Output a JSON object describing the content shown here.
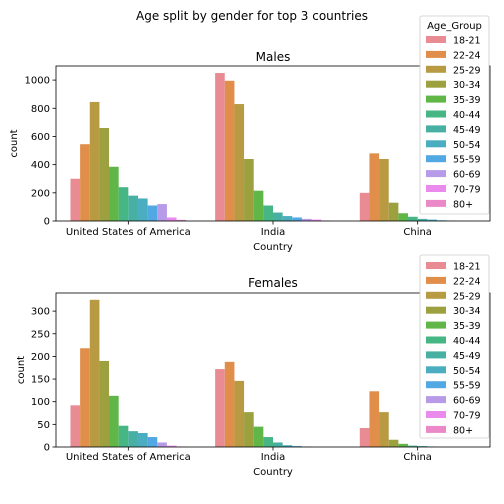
{
  "suptitle": "Age split by gender for top 3 countries",
  "colors": [
    "#e88b92",
    "#e08e4a",
    "#b79a41",
    "#9ca03f",
    "#60b646",
    "#47b685",
    "#48b0a3",
    "#4aaec0",
    "#52a8e3",
    "#b79ae8",
    "#ea8aec",
    "#eb88c7"
  ],
  "chart_data": [
    {
      "type": "bar",
      "title": "Males",
      "xlabel": "Country",
      "ylabel": "count",
      "categories": [
        "United States of America",
        "India",
        "China"
      ],
      "ylim": [
        0,
        1100
      ],
      "yticks": [
        0,
        200,
        400,
        600,
        800,
        1000
      ],
      "legend_title": "Age_Group",
      "legend_position": "upper right",
      "series": [
        {
          "name": "18-21",
          "values": [
            300,
            1050,
            200
          ]
        },
        {
          "name": "22-24",
          "values": [
            545,
            995,
            480
          ]
        },
        {
          "name": "25-29",
          "values": [
            845,
            830,
            440
          ]
        },
        {
          "name": "30-34",
          "values": [
            660,
            440,
            130
          ]
        },
        {
          "name": "35-39",
          "values": [
            385,
            215,
            55
          ]
        },
        {
          "name": "40-44",
          "values": [
            240,
            110,
            30
          ]
        },
        {
          "name": "45-49",
          "values": [
            180,
            60,
            15
          ]
        },
        {
          "name": "50-54",
          "values": [
            160,
            35,
            10
          ]
        },
        {
          "name": "55-59",
          "values": [
            110,
            25,
            5
          ]
        },
        {
          "name": "60-69",
          "values": [
            120,
            15,
            3
          ]
        },
        {
          "name": "70-79",
          "values": [
            25,
            10,
            1
          ]
        },
        {
          "name": "80+",
          "values": [
            8,
            3,
            0
          ]
        }
      ]
    },
    {
      "type": "bar",
      "title": "Females",
      "xlabel": "Country",
      "ylabel": "count",
      "categories": [
        "United States of America",
        "India",
        "China"
      ],
      "ylim": [
        0,
        340
      ],
      "yticks": [
        0,
        50,
        100,
        150,
        200,
        250,
        300
      ],
      "legend_title": "",
      "legend_position": "upper right",
      "series": [
        {
          "name": "18-21",
          "values": [
            92,
            172,
            42
          ]
        },
        {
          "name": "22-24",
          "values": [
            218,
            188,
            123
          ]
        },
        {
          "name": "25-29",
          "values": [
            325,
            146,
            77
          ]
        },
        {
          "name": "30-34",
          "values": [
            190,
            77,
            16
          ]
        },
        {
          "name": "35-39",
          "values": [
            113,
            45,
            7
          ]
        },
        {
          "name": "40-44",
          "values": [
            47,
            22,
            3
          ]
        },
        {
          "name": "45-49",
          "values": [
            35,
            10,
            2
          ]
        },
        {
          "name": "50-54",
          "values": [
            31,
            4,
            1
          ]
        },
        {
          "name": "55-59",
          "values": [
            22,
            2,
            0
          ]
        },
        {
          "name": "60-69",
          "values": [
            10,
            1,
            0
          ]
        },
        {
          "name": "70-79",
          "values": [
            3,
            0,
            0
          ]
        },
        {
          "name": "80+",
          "values": [
            1,
            0,
            0
          ]
        }
      ]
    }
  ]
}
